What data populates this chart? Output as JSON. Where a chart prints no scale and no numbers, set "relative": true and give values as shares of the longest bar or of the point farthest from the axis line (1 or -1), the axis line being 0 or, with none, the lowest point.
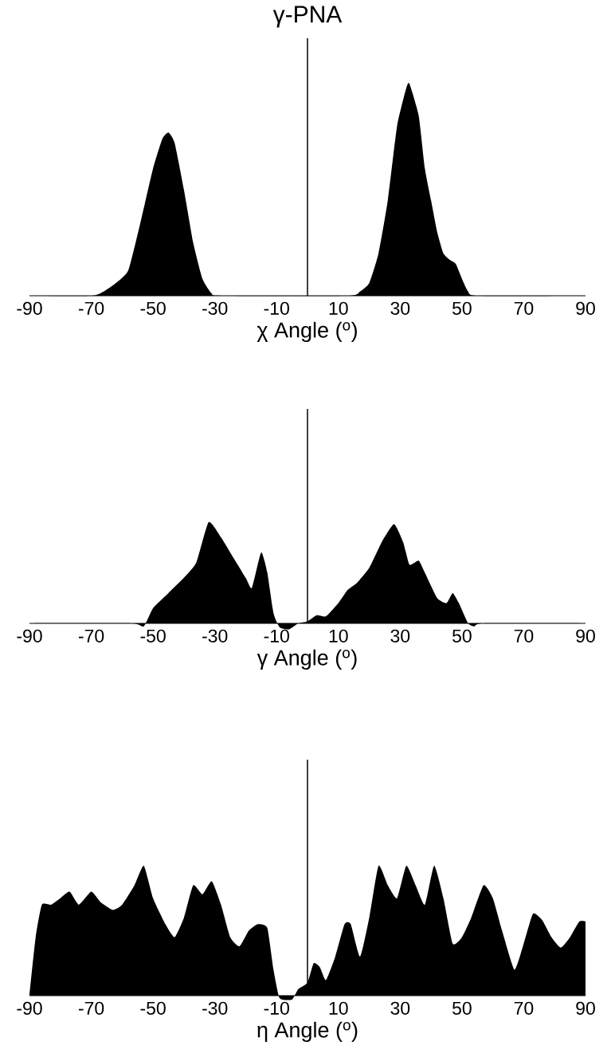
{
  "chart_data": [
    {
      "type": "area",
      "title": "γ-PNA",
      "xlabel": "χ Angle ($^{o}$)",
      "relative": true,
      "color": "#000000",
      "x": [
        -90,
        -70,
        -66,
        -62,
        -58,
        -54,
        -50,
        -47,
        -45,
        -43,
        -40,
        -37,
        -34,
        -31,
        -28,
        13,
        17,
        20,
        23,
        26,
        29,
        32,
        33,
        36,
        38,
        40,
        42,
        44,
        46,
        48,
        50,
        52,
        55,
        90
      ],
      "values": [
        0,
        0,
        0.02,
        0.06,
        0.12,
        0.35,
        0.6,
        0.74,
        0.77,
        0.72,
        0.5,
        0.25,
        0.08,
        0.01,
        0,
        0,
        0.02,
        0.06,
        0.2,
        0.45,
        0.8,
        0.98,
        1.0,
        0.85,
        0.6,
        0.45,
        0.3,
        0.2,
        0.17,
        0.15,
        0.08,
        0.02,
        0,
        0
      ],
      "xlim": [
        -90,
        90
      ],
      "xticks": [
        -90,
        -70,
        -50,
        -30,
        -10,
        10,
        30,
        50,
        70,
        90
      ],
      "ref_lines": [
        {
          "axis": "x",
          "value": 0,
          "color": "#000000"
        }
      ]
    },
    {
      "type": "area",
      "xlabel": "γ Angle ($^{o}$)",
      "relative": true,
      "color": "#000000",
      "x": [
        -90,
        -57,
        -53,
        -50,
        -45,
        -40,
        -36,
        -32,
        -28,
        -24,
        -20,
        -18,
        -15,
        -13,
        -11,
        -9,
        -6,
        -3,
        0,
        3,
        6,
        10,
        13,
        16,
        20,
        24,
        28,
        31,
        33,
        36,
        38,
        42,
        45,
        47,
        49,
        52,
        54,
        57,
        90
      ],
      "values": [
        0,
        0,
        -0.03,
        0.15,
        0.3,
        0.45,
        0.6,
        1.0,
        0.85,
        0.65,
        0.45,
        0.35,
        0.7,
        0.5,
        0.1,
        -0.04,
        -0.06,
        0,
        0.02,
        0.08,
        0.07,
        0.2,
        0.33,
        0.4,
        0.55,
        0.8,
        0.98,
        0.8,
        0.58,
        0.62,
        0.5,
        0.25,
        0.2,
        0.3,
        0.2,
        0,
        -0.03,
        0,
        0
      ],
      "xlim": [
        -90,
        90
      ],
      "xticks": [
        -90,
        -70,
        -50,
        -30,
        -10,
        10,
        30,
        50,
        70,
        90
      ],
      "ref_lines": [
        {
          "axis": "x",
          "value": 0,
          "color": "#000000"
        }
      ]
    },
    {
      "type": "area",
      "xlabel": "η Angle ($^{o}$)",
      "relative": true,
      "color": "#000000",
      "x": [
        -90,
        -88,
        -86,
        -83,
        -80,
        -77,
        -74,
        -70,
        -67,
        -63,
        -60,
        -56,
        -53,
        -50,
        -46,
        -43,
        -40,
        -37,
        -34,
        -31,
        -28,
        -25,
        -22,
        -19,
        -16,
        -13,
        -11,
        -9,
        -5,
        -3,
        0,
        2,
        4,
        6,
        9,
        12,
        14,
        17,
        20,
        23,
        26,
        29,
        32,
        35,
        38,
        41,
        44,
        47,
        50,
        53,
        57,
        60,
        63,
        67,
        70,
        73,
        76,
        79,
        82,
        85,
        88,
        90
      ],
      "values": [
        0,
        0.45,
        0.7,
        0.7,
        0.75,
        0.8,
        0.7,
        0.8,
        0.72,
        0.66,
        0.7,
        0.85,
        1.0,
        0.75,
        0.55,
        0.45,
        0.6,
        0.85,
        0.78,
        0.88,
        0.7,
        0.45,
        0.38,
        0.5,
        0.55,
        0.52,
        0.2,
        -0.02,
        -0.03,
        0.05,
        0.1,
        0.25,
        0.22,
        0.12,
        0.3,
        0.55,
        0.55,
        0.3,
        0.6,
        1.0,
        0.85,
        0.75,
        1.0,
        0.85,
        0.7,
        1.0,
        0.75,
        0.4,
        0.45,
        0.6,
        0.85,
        0.75,
        0.5,
        0.2,
        0.4,
        0.63,
        0.58,
        0.45,
        0.37,
        0.45,
        0.57,
        0.57
      ],
      "xlim": [
        -90,
        90
      ],
      "xticks": [
        -90,
        -70,
        -50,
        -30,
        -10,
        10,
        30,
        50,
        70,
        90
      ],
      "ref_lines": [
        {
          "axis": "x",
          "value": 0,
          "color": "#000000"
        }
      ]
    }
  ]
}
